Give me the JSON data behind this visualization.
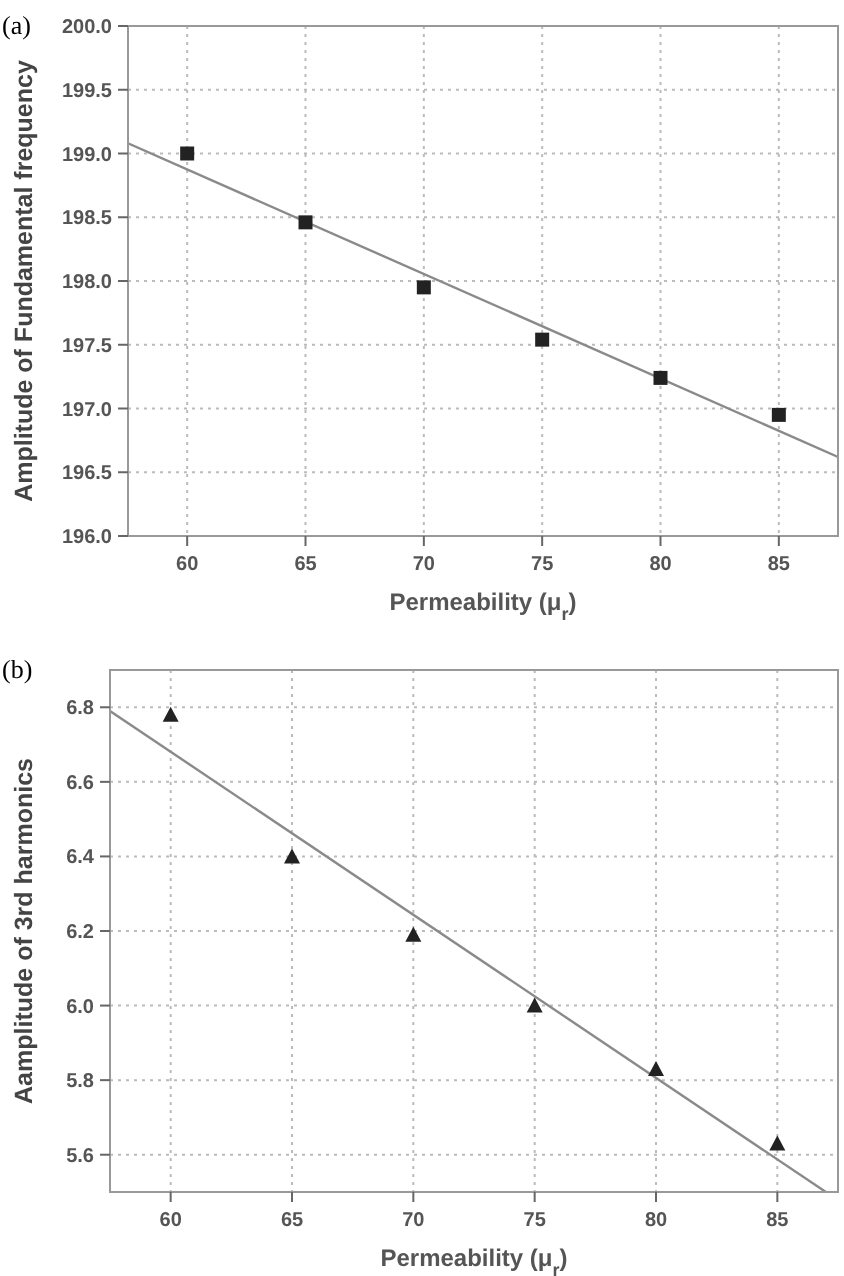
{
  "chart_data": [
    {
      "type": "scatter",
      "title": "(a)",
      "xlabel": "Permeability (μ$_{r}$)",
      "ylabel": "Amplitude of Fundamental frequency",
      "x": [
        60,
        65,
        70,
        75,
        80,
        85
      ],
      "xlim": [
        57.5,
        87.5
      ],
      "xticks": [
        60,
        65,
        70,
        75,
        80,
        85
      ],
      "ylim": [
        196.0,
        200.0
      ],
      "yticks": [
        {
          "value": 196,
          "label": "196.0"
        },
        {
          "value": 196.5,
          "label": "196.5"
        },
        {
          "value": 197,
          "label": "197.0"
        },
        {
          "value": 197.5,
          "label": "197.5"
        },
        {
          "value": 198,
          "label": "198.0"
        },
        {
          "value": 198.5,
          "label": "198.5"
        },
        {
          "value": 199,
          "label": "199.0"
        },
        {
          "value": 199.5,
          "label": "199.5"
        },
        {
          "value": 200,
          "label": "200.0"
        }
      ],
      "grid": true,
      "series": [
        {
          "marker": "square",
          "color": "#222222",
          "values": [
            199.0,
            198.46,
            197.95,
            197.54,
            197.24,
            196.95
          ]
        },
        {
          "type": "line",
          "marker": "none",
          "color": "#8a8a8a",
          "x": [
            57.5,
            87.5
          ],
          "values": [
            199.08,
            196.62
          ]
        }
      ]
    },
    {
      "type": "scatter",
      "title": "(b)",
      "xlabel": "Permeability (μ$_{r}$)",
      "ylabel": "Aamplitude of 3rd harmonics",
      "x": [
        60,
        65,
        70,
        75,
        80,
        85
      ],
      "xlim": [
        57.5,
        87.5
      ],
      "xticks": [
        60,
        65,
        70,
        75,
        80,
        85
      ],
      "ylim": [
        5.5,
        6.9
      ],
      "yticks": [
        {
          "value": 5.6,
          "label": "5.6"
        },
        {
          "value": 5.8,
          "label": "5.8"
        },
        {
          "value": 6,
          "label": "6.0"
        },
        {
          "value": 6.2,
          "label": "6.2"
        },
        {
          "value": 6.4,
          "label": "6.4"
        },
        {
          "value": 6.6,
          "label": "6.6"
        },
        {
          "value": 6.8,
          "label": "6.8"
        }
      ],
      "grid": true,
      "series": [
        {
          "marker": "triangle",
          "color": "#222222",
          "values": [
            6.78,
            6.4,
            6.19,
            6.0,
            5.83,
            5.63
          ]
        },
        {
          "type": "line",
          "marker": "none",
          "color": "#8a8a8a",
          "x": [
            57.5,
            87.0
          ],
          "values": [
            6.79,
            5.5
          ]
        }
      ]
    }
  ]
}
